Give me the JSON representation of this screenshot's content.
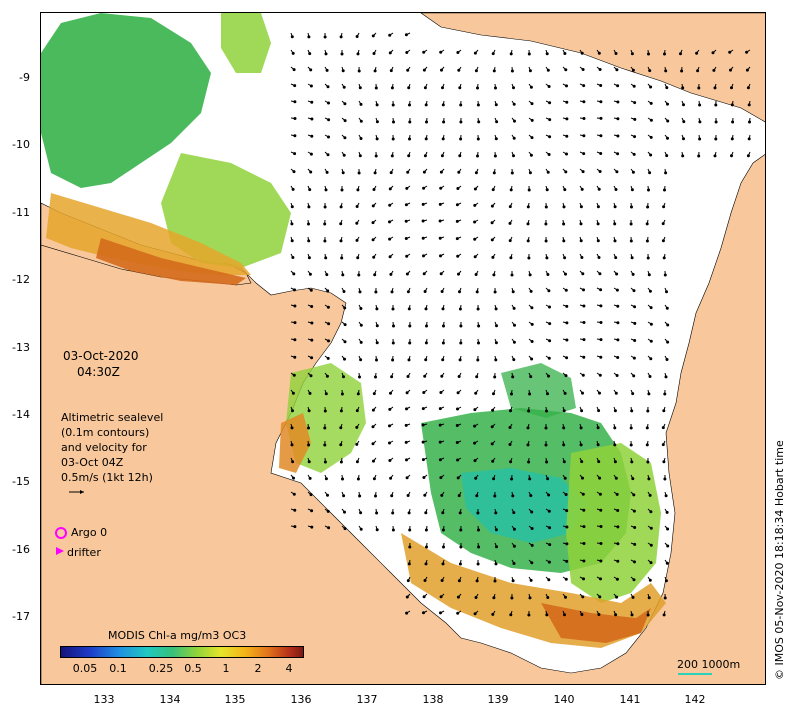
{
  "map": {
    "y_axis_labels": [
      "-9",
      "-10",
      "-11",
      "-12",
      "-13",
      "-14",
      "-15",
      "-16",
      "-17"
    ],
    "x_axis_labels": [
      "133",
      "134",
      "135",
      "136",
      "137",
      "138",
      "139",
      "140",
      "141",
      "142"
    ],
    "date": "03-Oct-2020",
    "time": "04:30Z",
    "legend_lines": [
      "Altimetric sealevel",
      "(0.1m contours)",
      "and velocity for",
      "03-Oct 04Z",
      "0.5m/s (1kt 12h)"
    ],
    "argo_label": "Argo 0",
    "drifter_label": "drifter",
    "colorbar_title": "MODIS Chl-a mg/m3 OC3",
    "colorbar_ticks": [
      "0.05",
      "0.1",
      "0.25",
      "0.5",
      "1",
      "2",
      "4"
    ],
    "scale_label": "200  1000m",
    "copyright": "© IMOS 05-Nov-2020 18:18:34 Hobart time",
    "colors": {
      "land": "#f8c89c",
      "argo_marker": "#ff00ff",
      "drifter_marker": "#ff00ff",
      "scale_bar": "#2bd1b8"
    }
  }
}
